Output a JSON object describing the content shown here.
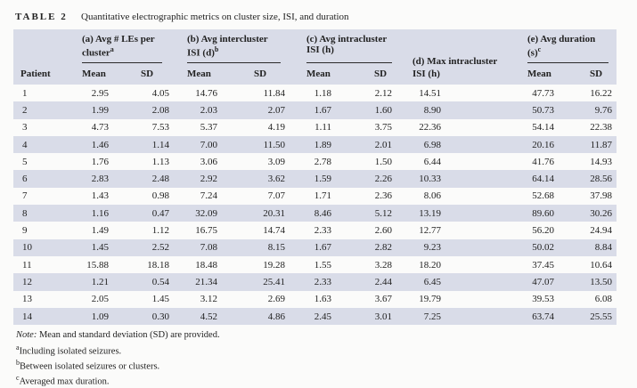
{
  "table_label": "TABLE 2",
  "table_caption": "Quantitative electrographic metrics on cluster size, ISI, and duration",
  "header": {
    "patient": "Patient",
    "mean_label": "Mean",
    "sd_label": "SD",
    "groups": [
      {
        "line1": "(a) Avg # LEs per",
        "line2": "cluster",
        "sup": "a"
      },
      {
        "line1": "(b) Avg intercluster",
        "line2": "ISI (d)",
        "sup": "b"
      },
      {
        "line1": "(c) Avg intracluster",
        "line2": "ISI (h)",
        "sup": ""
      },
      {
        "line1": "(e) Avg duration",
        "line2": "(s)",
        "sup": "c"
      }
    ],
    "max_col": {
      "line1": "(d) Max intracluster",
      "line2": "ISI (h)"
    }
  },
  "chart_data": {
    "type": "table",
    "title": "TABLE 2 Quantitative electrographic metrics on cluster size, ISI, and duration",
    "columns": [
      "Patient",
      "(a) Avg # LEs per cluster Mean",
      "(a) SD",
      "(b) Avg intercluster ISI (d) Mean",
      "(b) SD",
      "(c) Avg intracluster ISI (h) Mean",
      "(c) SD",
      "(d) Max intracluster ISI (h)",
      "(e) Avg duration (s) Mean",
      "(e) SD"
    ]
  },
  "rows": [
    [
      "1",
      "2.95",
      "4.05",
      "14.76",
      "11.84",
      "1.18",
      "2.12",
      "14.51",
      "47.73",
      "16.22"
    ],
    [
      "2",
      "1.99",
      "2.08",
      "2.03",
      "2.07",
      "1.67",
      "1.60",
      "8.90",
      "50.73",
      "9.76"
    ],
    [
      "3",
      "4.73",
      "7.53",
      "5.37",
      "4.19",
      "1.11",
      "3.75",
      "22.36",
      "54.14",
      "22.38"
    ],
    [
      "4",
      "1.46",
      "1.14",
      "7.00",
      "11.50",
      "1.89",
      "2.01",
      "6.98",
      "20.16",
      "11.87"
    ],
    [
      "5",
      "1.76",
      "1.13",
      "3.06",
      "3.09",
      "2.78",
      "1.50",
      "6.44",
      "41.76",
      "14.93"
    ],
    [
      "6",
      "2.83",
      "2.48",
      "2.92",
      "3.62",
      "1.59",
      "2.26",
      "10.33",
      "64.14",
      "28.56"
    ],
    [
      "7",
      "1.43",
      "0.98",
      "7.24",
      "7.07",
      "1.71",
      "2.36",
      "8.06",
      "52.68",
      "37.98"
    ],
    [
      "8",
      "1.16",
      "0.47",
      "32.09",
      "20.31",
      "8.46",
      "5.12",
      "13.19",
      "89.60",
      "30.26"
    ],
    [
      "9",
      "1.49",
      "1.12",
      "16.75",
      "14.74",
      "2.33",
      "2.60",
      "12.77",
      "56.20",
      "24.94"
    ],
    [
      "10",
      "1.45",
      "2.52",
      "7.08",
      "8.15",
      "1.67",
      "2.82",
      "9.23",
      "50.02",
      "8.84"
    ],
    [
      "11",
      "15.88",
      "18.18",
      "18.48",
      "19.28",
      "1.55",
      "3.28",
      "18.20",
      "37.45",
      "10.64"
    ],
    [
      "12",
      "1.21",
      "0.54",
      "21.34",
      "25.41",
      "2.33",
      "2.44",
      "6.45",
      "47.07",
      "13.50"
    ],
    [
      "13",
      "2.05",
      "1.45",
      "3.12",
      "2.69",
      "1.63",
      "3.67",
      "19.79",
      "39.53",
      "6.08"
    ],
    [
      "14",
      "1.09",
      "0.30",
      "4.52",
      "4.86",
      "2.45",
      "3.01",
      "7.25",
      "63.74",
      "25.55"
    ]
  ],
  "footnotes": {
    "note_label": "Note:",
    "note_text": "Mean and standard deviation (SD) are provided.",
    "items": [
      {
        "marker": "a",
        "text": "Including isolated seizures."
      },
      {
        "marker": "b",
        "text": "Between isolated seizures or clusters."
      },
      {
        "marker": "c",
        "text": "Averaged max duration."
      }
    ]
  }
}
